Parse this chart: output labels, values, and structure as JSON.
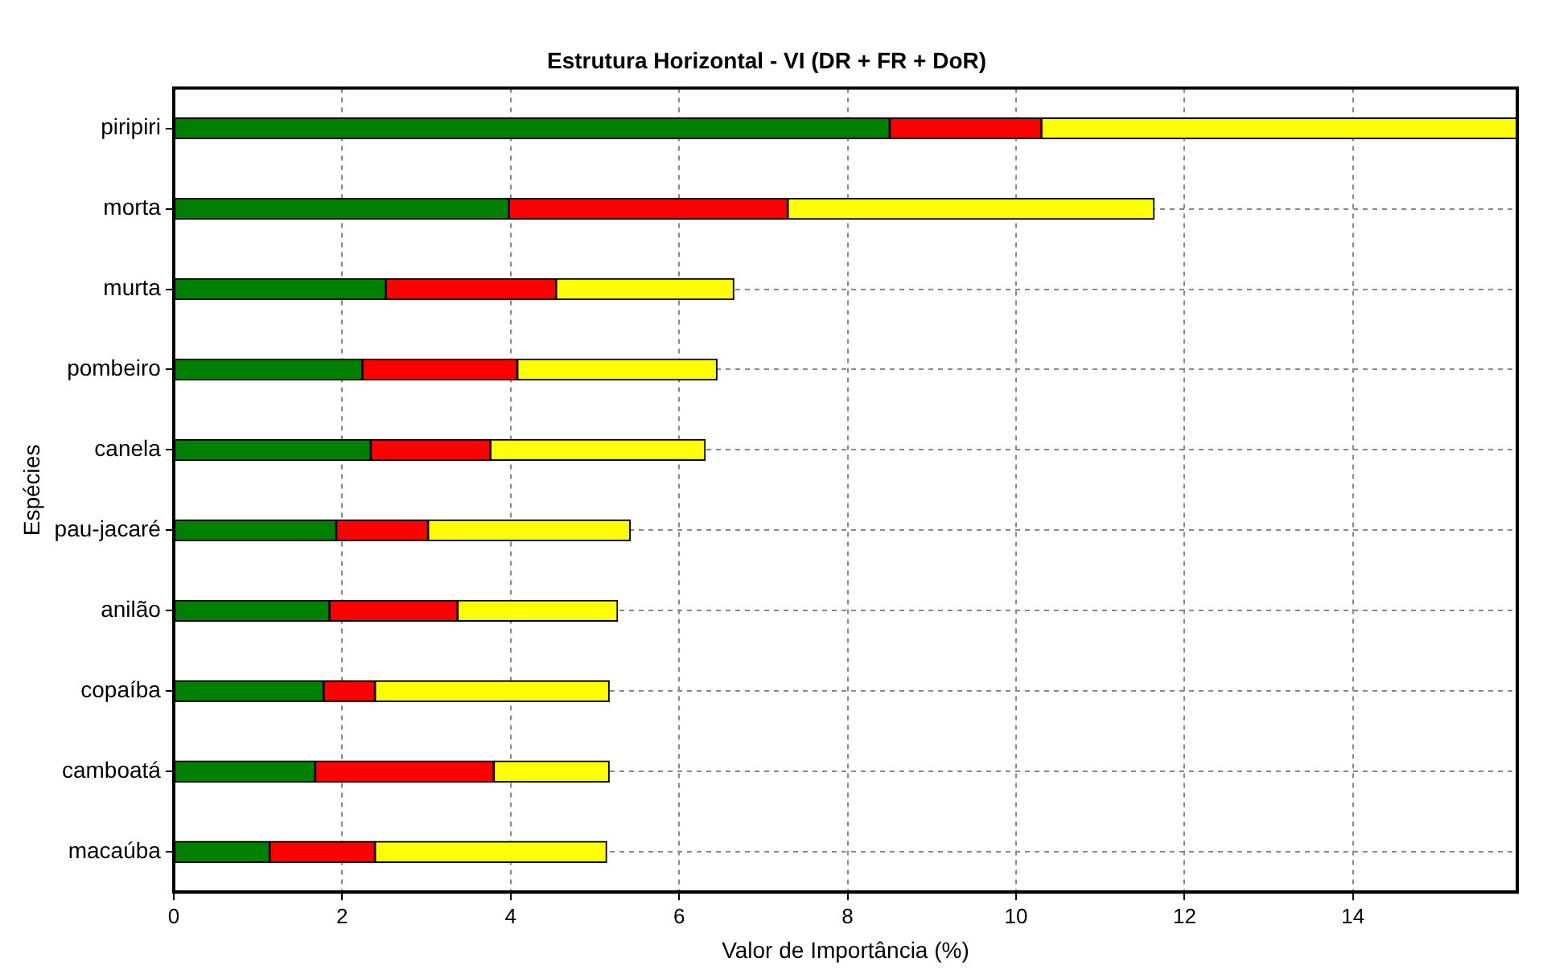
{
  "chart_data": {
    "type": "bar",
    "orientation": "horizontal",
    "stacked": true,
    "title": "Estrutura Horizontal - VI (DR + FR + DoR)",
    "xlabel": "Valor de Importância (%)",
    "ylabel": "Espécies",
    "categories": [
      "piripiri",
      "morta",
      "murta",
      "pombeiro",
      "canela",
      "pau-jacaré",
      "anilão",
      "copaíba",
      "camboatá",
      "macaúba"
    ],
    "series": [
      {
        "color": "#008000",
        "values": [
          8.5,
          3.98,
          2.52,
          2.24,
          2.34,
          1.93,
          1.85,
          1.78,
          1.68,
          1.14
        ]
      },
      {
        "color": "#ff0000",
        "values": [
          1.8,
          3.31,
          2.02,
          1.84,
          1.42,
          1.09,
          1.52,
          0.61,
          2.12,
          1.25
        ]
      },
      {
        "color": "#ffff00",
        "values": [
          5.65,
          4.35,
          2.11,
          2.37,
          2.55,
          2.4,
          1.9,
          2.78,
          1.37,
          2.75
        ]
      }
    ],
    "xlim": [
      0,
      15.95
    ],
    "xticks": [
      0,
      2,
      4,
      6,
      8,
      10,
      12,
      14
    ],
    "grid": true,
    "legend": false
  }
}
